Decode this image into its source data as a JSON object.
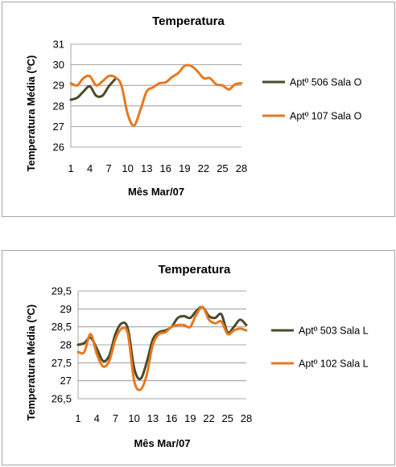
{
  "chart_data": [
    {
      "type": "line",
      "title": "Temperatura",
      "xlabel": "Mês Mar/07",
      "ylabel": "Temperatura Média (ºC)",
      "x": [
        1,
        2,
        3,
        4,
        5,
        6,
        7,
        8,
        9,
        10,
        11,
        12,
        13,
        14,
        15,
        16,
        17,
        18,
        19,
        20,
        21,
        22,
        23,
        24,
        25,
        26,
        27,
        28
      ],
      "xticks": [
        "1",
        "4",
        "7",
        "10",
        "13",
        "16",
        "19",
        "22",
        "25",
        "28"
      ],
      "yticks": [
        "26",
        "27",
        "28",
        "29",
        "30",
        "31"
      ],
      "ylim": [
        26,
        31
      ],
      "grid": "horizontal",
      "legend": "right",
      "series": [
        {
          "name": "Aptº 506 Sala O",
          "color": "#4a4a2c",
          "values": [
            28.3,
            28.4,
            28.7,
            28.95,
            28.5,
            28.5,
            28.95,
            29.3,
            null,
            null,
            null,
            null,
            null,
            null,
            null,
            null,
            null,
            null,
            null,
            null,
            null,
            null,
            null,
            null,
            null,
            null,
            null,
            null
          ]
        },
        {
          "name": "Aptº 107 Sala O",
          "color": "#e8781e",
          "values": [
            29.1,
            29.0,
            29.35,
            29.45,
            29.0,
            29.2,
            29.45,
            29.4,
            29.0,
            27.6,
            27.05,
            27.8,
            28.7,
            28.9,
            29.1,
            29.15,
            29.4,
            29.6,
            29.95,
            29.95,
            29.7,
            29.35,
            29.35,
            29.05,
            29.0,
            28.8,
            29.05,
            29.1
          ]
        }
      ]
    },
    {
      "type": "line",
      "title": "Temperatura",
      "xlabel": "Mês Mar/07",
      "ylabel": "Temperatura Média (ºC)",
      "x": [
        1,
        2,
        3,
        4,
        5,
        6,
        7,
        8,
        9,
        10,
        11,
        12,
        13,
        14,
        15,
        16,
        17,
        18,
        19,
        20,
        21,
        22,
        23,
        24,
        25,
        26,
        27,
        28
      ],
      "xticks": [
        "1",
        "4",
        "7",
        "10",
        "13",
        "16",
        "19",
        "22",
        "25",
        "28"
      ],
      "yticks": [
        "26,5",
        "27",
        "27,5",
        "28",
        "28,5",
        "29",
        "29,5"
      ],
      "ylim": [
        26.5,
        29.5
      ],
      "grid": "horizontal",
      "legend": "right",
      "series": [
        {
          "name": "Aptº 503 Sala L",
          "color": "#4a4a2c",
          "values": [
            28.0,
            28.05,
            28.2,
            27.9,
            27.55,
            27.7,
            28.3,
            28.6,
            28.45,
            27.35,
            27.05,
            27.5,
            28.15,
            28.35,
            28.4,
            28.5,
            28.75,
            28.8,
            28.75,
            28.95,
            29.05,
            28.8,
            28.75,
            28.85,
            28.35,
            28.5,
            28.7,
            28.55
          ]
        },
        {
          "name": "Aptº 102 Sala L",
          "color": "#e8781e",
          "values": [
            27.8,
            27.8,
            28.3,
            27.75,
            27.4,
            27.55,
            28.15,
            28.45,
            28.3,
            27.0,
            26.75,
            27.15,
            28.0,
            28.3,
            28.35,
            28.5,
            28.55,
            28.55,
            28.5,
            28.85,
            29.05,
            28.7,
            28.6,
            28.65,
            28.3,
            28.4,
            28.45,
            28.4
          ]
        }
      ]
    }
  ]
}
